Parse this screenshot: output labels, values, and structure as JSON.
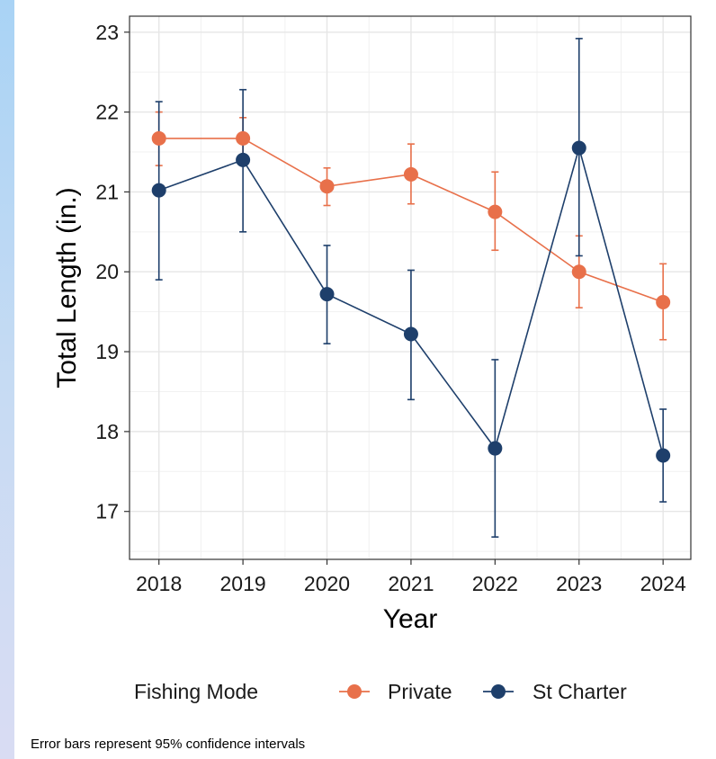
{
  "chart_data": {
    "type": "line",
    "title": "",
    "xlabel": "Year",
    "ylabel": "Total Length (in.)",
    "x": [
      2018,
      2019,
      2020,
      2021,
      2022,
      2023,
      2024
    ],
    "x_tick_labels": [
      "2018",
      "2019",
      "2020",
      "2021",
      "2022",
      "2023",
      "2024"
    ],
    "y_ticks": [
      17,
      18,
      19,
      20,
      21,
      22,
      23
    ],
    "y_tick_labels": [
      "17",
      "18",
      "19",
      "20",
      "21",
      "22",
      "23"
    ],
    "ylim": [
      16.4,
      23.2
    ],
    "xlim": [
      2017.65,
      2024.33
    ],
    "grid": true,
    "legend_title": "Fishing Mode",
    "legend_position": "bottom",
    "series": [
      {
        "name": "Private",
        "color": "#e8704a",
        "values": [
          21.67,
          21.67,
          21.07,
          21.22,
          20.75,
          20.0,
          19.62
        ],
        "lower": [
          21.33,
          21.43,
          20.83,
          20.85,
          20.27,
          19.55,
          19.15
        ],
        "upper": [
          22.0,
          21.93,
          21.3,
          21.6,
          21.25,
          20.45,
          20.1
        ]
      },
      {
        "name": "St Charter",
        "color": "#1e3f6b",
        "values": [
          21.02,
          21.4,
          19.72,
          19.22,
          17.79,
          21.55,
          17.7
        ],
        "lower": [
          19.9,
          20.5,
          19.1,
          18.4,
          16.68,
          20.2,
          17.12
        ],
        "upper": [
          22.13,
          22.28,
          20.33,
          20.02,
          18.9,
          22.92,
          18.28
        ]
      }
    ],
    "caption": "Error bars represent 95% confidence intervals"
  }
}
